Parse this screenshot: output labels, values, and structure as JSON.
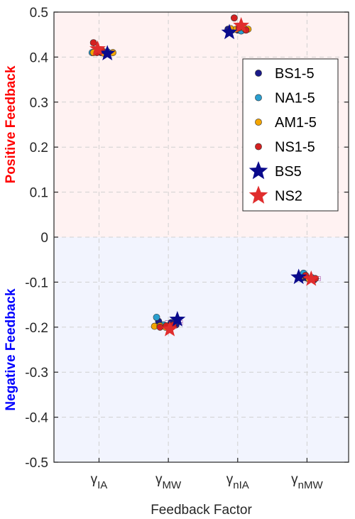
{
  "chart_data": {
    "type": "scatter",
    "xlabel": "Feedback Factor",
    "ylim": [
      -0.5,
      0.5
    ],
    "yticks": [
      0.5,
      0.4,
      0.3,
      0.2,
      0.1,
      0,
      -0.1,
      -0.2,
      -0.3,
      -0.4,
      -0.5
    ],
    "ytick_labels": [
      "0.5",
      "0.4",
      "0.3",
      "0.2",
      "0.1",
      "0",
      "-0.1",
      "-0.2",
      "-0.3",
      "-0.4",
      "-0.5"
    ],
    "grid": true,
    "legend_position": "top-right",
    "categories": [
      {
        "sym": "γ",
        "sub": "IA"
      },
      {
        "sym": "γ",
        "sub": "MW"
      },
      {
        "sym": "γ",
        "sub": "nIA"
      },
      {
        "sym": "γ",
        "sub": "nMW"
      }
    ],
    "regions": [
      {
        "label": "Positive Feedback",
        "from": 0,
        "to": 0.5,
        "fill": "#fff2f2",
        "text_color": "#ff0000"
      },
      {
        "label": "Negative Feedback",
        "from": -0.5,
        "to": 0,
        "fill": "#f2f4fe",
        "text_color": "#0000ff"
      }
    ],
    "series": [
      {
        "name": "BS1-5",
        "marker": "circle",
        "color": "#1a1a8a",
        "points": [
          [
            0.95,
            0.412
          ],
          [
            1.03,
            0.41
          ],
          [
            1.08,
            0.409
          ],
          [
            1.86,
            -0.187
          ],
          [
            2.04,
            -0.19
          ],
          [
            2.11,
            -0.195
          ],
          [
            2.86,
            0.462
          ],
          [
            3.0,
            0.46
          ],
          [
            3.08,
            0.461
          ],
          [
            3.94,
            -0.09
          ],
          [
            4.0,
            -0.091
          ],
          [
            4.1,
            -0.095
          ]
        ]
      },
      {
        "name": "NA1-5",
        "marker": "circle",
        "color": "#2a9fd0",
        "points": [
          [
            0.9,
            0.41
          ],
          [
            0.97,
            0.413
          ],
          [
            1.12,
            0.412
          ],
          [
            1.83,
            -0.178
          ],
          [
            1.93,
            -0.195
          ],
          [
            2.92,
            0.46
          ],
          [
            3.05,
            0.458
          ],
          [
            3.95,
            -0.08
          ],
          [
            4.07,
            -0.09
          ]
        ]
      },
      {
        "name": "AM1-5",
        "marker": "circle",
        "color": "#f4a500",
        "points": [
          [
            0.92,
            0.41
          ],
          [
            1.0,
            0.412
          ],
          [
            1.06,
            0.409
          ],
          [
            1.2,
            0.41
          ],
          [
            1.8,
            -0.198
          ],
          [
            1.88,
            -0.197
          ],
          [
            1.96,
            -0.2
          ],
          [
            2.02,
            -0.198
          ],
          [
            2.9,
            0.463
          ],
          [
            2.98,
            0.462
          ],
          [
            3.1,
            0.463
          ],
          [
            3.15,
            0.462
          ],
          [
            3.9,
            -0.09
          ],
          [
            4.03,
            -0.093
          ]
        ]
      },
      {
        "name": "NS1-5",
        "marker": "circle",
        "color": "#d42020",
        "points": [
          [
            0.92,
            0.432
          ],
          [
            0.97,
            0.41
          ],
          [
            1.04,
            0.415
          ],
          [
            1.88,
            -0.2
          ],
          [
            1.97,
            -0.197
          ],
          [
            2.07,
            -0.195
          ],
          [
            2.95,
            0.487
          ],
          [
            3.02,
            0.465
          ],
          [
            3.12,
            0.46
          ],
          [
            3.98,
            -0.085
          ],
          [
            4.12,
            -0.092
          ]
        ]
      },
      {
        "name": "BS5",
        "marker": "star",
        "color": "#0a0a8c",
        "points": [
          [
            1.12,
            0.408
          ],
          [
            2.13,
            -0.183
          ],
          [
            2.88,
            0.455
          ],
          [
            3.88,
            -0.089
          ]
        ]
      },
      {
        "name": "NS2",
        "marker": "star",
        "color": "#e02d2d",
        "points": [
          [
            0.98,
            0.418
          ],
          [
            2.02,
            -0.205
          ],
          [
            3.05,
            0.47
          ],
          [
            4.06,
            -0.093
          ]
        ]
      }
    ],
    "error_bars": [
      {
        "x": 1.06,
        "y": 0.411,
        "xerr": 0.2,
        "yerr": 0.02,
        "color": "#c080c0"
      },
      {
        "x": 2.08,
        "y": -0.19,
        "xerr": 0.25,
        "yerr": 0.02,
        "color": "#c080c0"
      },
      {
        "x": 3.05,
        "y": 0.462,
        "xerr": 0.25,
        "yerr": 0.02,
        "color": "#c080c0"
      },
      {
        "x": 4.07,
        "y": -0.092,
        "xerr": 0.25,
        "yerr": 0.02,
        "color": "#c080c0"
      }
    ]
  }
}
